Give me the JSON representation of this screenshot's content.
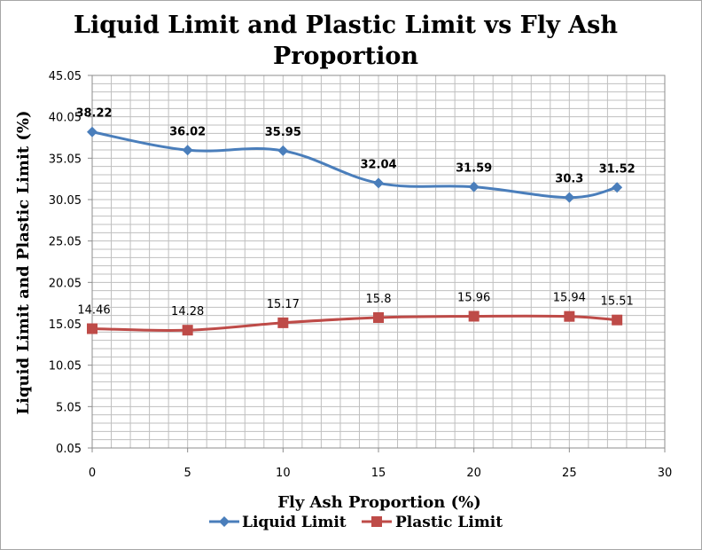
{
  "chart_data": {
    "type": "line",
    "title": "Liquid Limit and Plastic Limit vs Fly Ash Proportion",
    "title_lines": [
      "Liquid Limit and Plastic Limit vs Fly Ash",
      "Proportion"
    ],
    "xlabel": "Fly Ash Proportion  (%)",
    "ylabel": "Liquid Limit and Plastic Limit (%)",
    "xlim": [
      0,
      30
    ],
    "ylim": [
      0.05,
      45.05
    ],
    "x_ticks": [
      "0",
      "5",
      "10",
      "15",
      "20",
      "25",
      "30"
    ],
    "y_ticks": [
      "0.05",
      "5.05",
      "10.05",
      "15.05",
      "20.05",
      "25.05",
      "30.05",
      "35.05",
      "40.05",
      "45.05"
    ],
    "grid": true,
    "legend_position": "bottom",
    "series": [
      {
        "name": "Liquid Limit",
        "color": "#4a7ebb",
        "marker": "diamond",
        "x": [
          0,
          5,
          10,
          15,
          20,
          25,
          27.5
        ],
        "values": [
          38.22,
          36.02,
          35.95,
          32.04,
          31.59,
          30.3,
          31.52
        ],
        "labels": [
          "38.22",
          "36.02",
          "35.95",
          "32.04",
          "31.59",
          "30.3",
          "31.52"
        ]
      },
      {
        "name": "Plastic Limit",
        "color": "#be4b48",
        "marker": "square",
        "x": [
          0,
          5,
          10,
          15,
          20,
          25,
          27.5
        ],
        "values": [
          14.46,
          14.28,
          15.17,
          15.8,
          15.96,
          15.94,
          15.51
        ],
        "labels": [
          "14.46",
          "14.28",
          "15.17",
          "15.8",
          "15.96",
          "15.94",
          "15.51"
        ]
      }
    ]
  }
}
